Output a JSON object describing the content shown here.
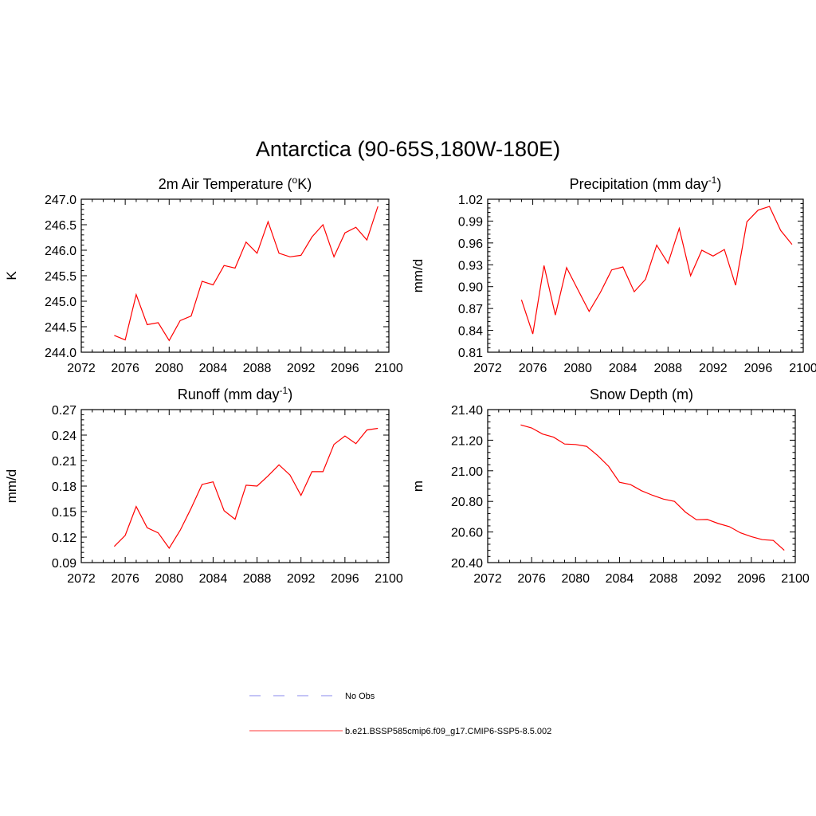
{
  "figure": {
    "title": "Antarctica (90-65S,180W-180E)"
  },
  "chart_data": [
    {
      "type": "line",
      "title_main": "2m Air Temperature (",
      "title_sup": "o",
      "title_end": "K)",
      "xlabel": "",
      "ylabel": "K",
      "xlim": [
        2072,
        2100
      ],
      "ylim": [
        244.0,
        247.0
      ],
      "x_ticks": [
        2072,
        2076,
        2080,
        2084,
        2088,
        2092,
        2096,
        2100
      ],
      "y_ticks": [
        "244.0",
        "244.5",
        "245.0",
        "245.5",
        "246.0",
        "246.5",
        "247.0"
      ],
      "grid": false,
      "series": [
        {
          "color": "#ff0000",
          "x": [
            2075,
            2076,
            2077,
            2078,
            2079,
            2080,
            2081,
            2082,
            2083,
            2084,
            2085,
            2086,
            2087,
            2088,
            2089,
            2090,
            2091,
            2092,
            2093,
            2094,
            2095,
            2096,
            2097,
            2098,
            2099
          ],
          "y": [
            244.33,
            244.24,
            245.13,
            244.54,
            244.58,
            244.23,
            244.62,
            244.71,
            245.39,
            245.32,
            245.7,
            245.65,
            246.16,
            245.94,
            246.56,
            245.94,
            245.87,
            245.9,
            246.26,
            246.5,
            245.87,
            246.34,
            246.45,
            246.2,
            246.86
          ]
        }
      ]
    },
    {
      "type": "line",
      "title_main": "Precipitation (mm day",
      "title_sup": "-1",
      "title_end": ")",
      "xlabel": "",
      "ylabel": "mm/d",
      "xlim": [
        2072,
        2100
      ],
      "ylim": [
        0.81,
        1.02
      ],
      "x_ticks": [
        2072,
        2076,
        2080,
        2084,
        2088,
        2092,
        2096,
        2100
      ],
      "y_ticks": [
        "0.81",
        "0.84",
        "0.87",
        "0.90",
        "0.93",
        "0.96",
        "0.99",
        "1.02"
      ],
      "grid": false,
      "series": [
        {
          "color": "#ff0000",
          "x": [
            2075,
            2076,
            2077,
            2078,
            2079,
            2080,
            2081,
            2082,
            2083,
            2084,
            2085,
            2086,
            2087,
            2088,
            2089,
            2090,
            2091,
            2092,
            2093,
            2094,
            2095,
            2096,
            2097,
            2098,
            2099
          ],
          "y": [
            0.882,
            0.835,
            0.929,
            0.861,
            0.926,
            0.896,
            0.866,
            0.892,
            0.923,
            0.927,
            0.893,
            0.91,
            0.957,
            0.932,
            0.98,
            0.915,
            0.95,
            0.942,
            0.951,
            0.902,
            0.989,
            1.005,
            1.01,
            0.977,
            0.958
          ]
        }
      ]
    },
    {
      "type": "line",
      "title_main": "Runoff (mm day",
      "title_sup": "-1",
      "title_end": ")",
      "xlabel": "",
      "ylabel": "mm/d",
      "xlim": [
        2072,
        2100
      ],
      "ylim": [
        0.09,
        0.27
      ],
      "x_ticks": [
        2072,
        2076,
        2080,
        2084,
        2088,
        2092,
        2096,
        2100
      ],
      "y_ticks": [
        "0.09",
        "0.12",
        "0.15",
        "0.18",
        "0.21",
        "0.24",
        "0.27"
      ],
      "grid": false,
      "series": [
        {
          "color": "#ff0000",
          "x": [
            2075,
            2076,
            2077,
            2078,
            2079,
            2080,
            2081,
            2082,
            2083,
            2084,
            2085,
            2086,
            2087,
            2088,
            2089,
            2090,
            2091,
            2092,
            2093,
            2094,
            2095,
            2096,
            2097,
            2098,
            2099
          ],
          "y": [
            0.109,
            0.122,
            0.156,
            0.131,
            0.125,
            0.107,
            0.128,
            0.154,
            0.182,
            0.185,
            0.151,
            0.141,
            0.181,
            0.18,
            0.192,
            0.205,
            0.193,
            0.169,
            0.197,
            0.197,
            0.229,
            0.239,
            0.23,
            0.246,
            0.248
          ]
        }
      ]
    },
    {
      "type": "line",
      "title_main": "Snow Depth (m)",
      "title_sup": "",
      "title_end": "",
      "xlabel": "",
      "ylabel": "m",
      "xlim": [
        2072,
        2100
      ],
      "ylim": [
        20.4,
        21.4
      ],
      "x_ticks": [
        2072,
        2076,
        2080,
        2084,
        2088,
        2092,
        2096,
        2100
      ],
      "y_ticks": [
        "20.40",
        "20.60",
        "20.80",
        "21.00",
        "21.20",
        "21.40"
      ],
      "grid": false,
      "series": [
        {
          "color": "#ff0000",
          "x": [
            2075,
            2076,
            2077,
            2078,
            2079,
            2080,
            2081,
            2082,
            2083,
            2084,
            2085,
            2086,
            2087,
            2088,
            2089,
            2090,
            2091,
            2092,
            2093,
            2094,
            2095,
            2096,
            2097,
            2098,
            2099
          ],
          "y": [
            21.3,
            21.28,
            21.24,
            21.22,
            21.175,
            21.172,
            21.16,
            21.1,
            21.03,
            20.925,
            20.91,
            20.87,
            20.84,
            20.815,
            20.8,
            20.73,
            20.68,
            20.682,
            20.655,
            20.635,
            20.595,
            20.57,
            20.55,
            20.545,
            20.48
          ]
        }
      ]
    }
  ],
  "legend": {
    "items": [
      {
        "label": "No Obs",
        "color": "#a0a0f0",
        "style": "dashed"
      },
      {
        "label": "b.e21.BSSP585cmip6.f09_g17.CMIP6-SSP5-8.5.002",
        "color": "#ff6060",
        "style": "solid"
      }
    ]
  }
}
